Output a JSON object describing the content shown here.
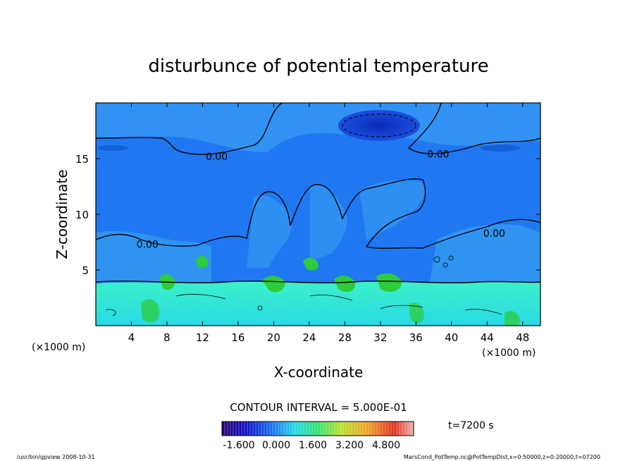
{
  "chart_data": {
    "type": "heatmap",
    "title": "disturbunce of potential temperature",
    "xlabel": "X-coordinate",
    "ylabel": "Z-coordinate",
    "x_unit": "(×1000 m)",
    "y_unit": "(×1000 m)",
    "xlim": [
      0,
      50
    ],
    "ylim": [
      0,
      20
    ],
    "x_ticks": [
      4,
      8,
      12,
      16,
      20,
      24,
      28,
      32,
      36,
      40,
      44,
      48
    ],
    "y_ticks": [
      5,
      10,
      15
    ],
    "contour_labels": [
      {
        "text": "0.00",
        "x": 13.6,
        "z": 15.2
      },
      {
        "text": "0.00",
        "x": 38.5,
        "z": 15.4
      },
      {
        "text": "0.00",
        "x": 5.8,
        "z": 7.3
      },
      {
        "text": "0.00",
        "x": 44.8,
        "z": 8.3
      }
    ],
    "contour_interval_text": "CONTOUR INTERVAL = 5.000E-01",
    "time_text": "t=7200 s",
    "colorbar_ticks": [
      "-1.600",
      "0.000",
      "1.600",
      "3.200",
      "4.800"
    ],
    "colors": {
      "upper_field": "#1c6ef0",
      "lower_field": "#22e6d2",
      "minimum": "#0a2fc8",
      "positive": "#2ecc3a"
    }
  },
  "footer": {
    "left": "/usr/bin/gpview   2008-10-31",
    "right": "MarsCond_PotTemp.nc@PotTempDist,x=0:50000,z=0:20000,t=07200"
  }
}
